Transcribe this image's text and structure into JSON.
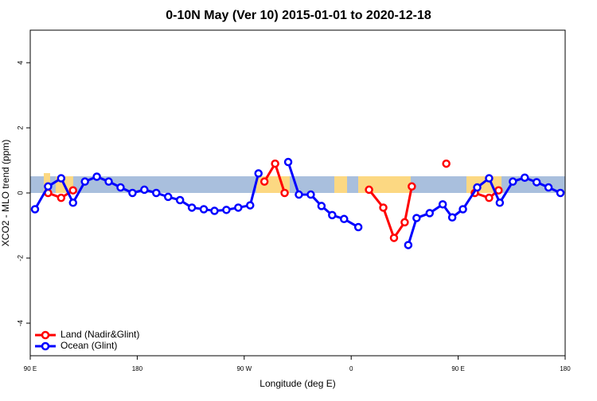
{
  "chart_data": {
    "type": "line",
    "title": "0-10N May (Ver 10)   2015-01-01 to 2020-12-18",
    "x_label": "Longitude (deg E)",
    "y_label": "XCO2 - MLO trend (ppm)",
    "xlim": [
      90,
      540
    ],
    "xticks": [
      {
        "value": 90,
        "label": "90 E"
      },
      180,
      {
        "value": 270,
        "label": "90 W"
      },
      {
        "value": 360,
        "label": "0"
      },
      {
        "value": 450,
        "label": "90 E"
      },
      {
        "value": 540,
        "label": "180"
      }
    ],
    "ylim": [
      -5,
      5
    ],
    "yticks": [
      -4,
      -2,
      0,
      2,
      4
    ],
    "legend": "bottom-left",
    "series": [
      {
        "name": "Land (Nadir&Glint)",
        "color": "#ff0000",
        "x": [
          105,
          116,
          126,
          null,
          287,
          296,
          304,
          null,
          375,
          387,
          396,
          405,
          411,
          null,
          440,
          null,
          464,
          476,
          484
        ],
        "values": [
          0.0,
          -0.15,
          0.08,
          null,
          0.35,
          0.9,
          0.0,
          null,
          0.1,
          -0.45,
          -1.38,
          -0.9,
          0.2,
          null,
          0.9,
          null,
          0.0,
          -0.15,
          0.08
        ]
      },
      {
        "name": "Ocean (Glint)",
        "color": "#0000ff",
        "x": [
          94,
          105,
          116,
          126,
          136,
          146,
          156,
          166,
          176,
          186,
          196,
          206,
          216,
          226,
          236,
          245,
          255,
          265,
          275,
          282,
          null,
          307,
          316,
          326,
          335,
          344,
          354,
          366,
          null,
          408,
          415,
          426,
          437,
          445,
          454,
          466,
          476,
          485,
          496,
          506,
          516,
          526,
          536
        ],
        "values": [
          -0.5,
          0.2,
          0.45,
          -0.3,
          0.35,
          0.5,
          0.35,
          0.17,
          0.0,
          0.1,
          0.0,
          -0.12,
          -0.22,
          -0.45,
          -0.5,
          -0.55,
          -0.52,
          -0.45,
          -0.38,
          0.6,
          null,
          0.95,
          -0.05,
          -0.05,
          -0.4,
          -0.68,
          -0.8,
          -1.05,
          null,
          -1.6,
          -0.77,
          -0.62,
          -0.35,
          -0.75,
          -0.5,
          0.17,
          0.45,
          -0.3,
          0.35,
          0.47,
          0.33,
          0.17,
          0.0
        ]
      }
    ]
  }
}
